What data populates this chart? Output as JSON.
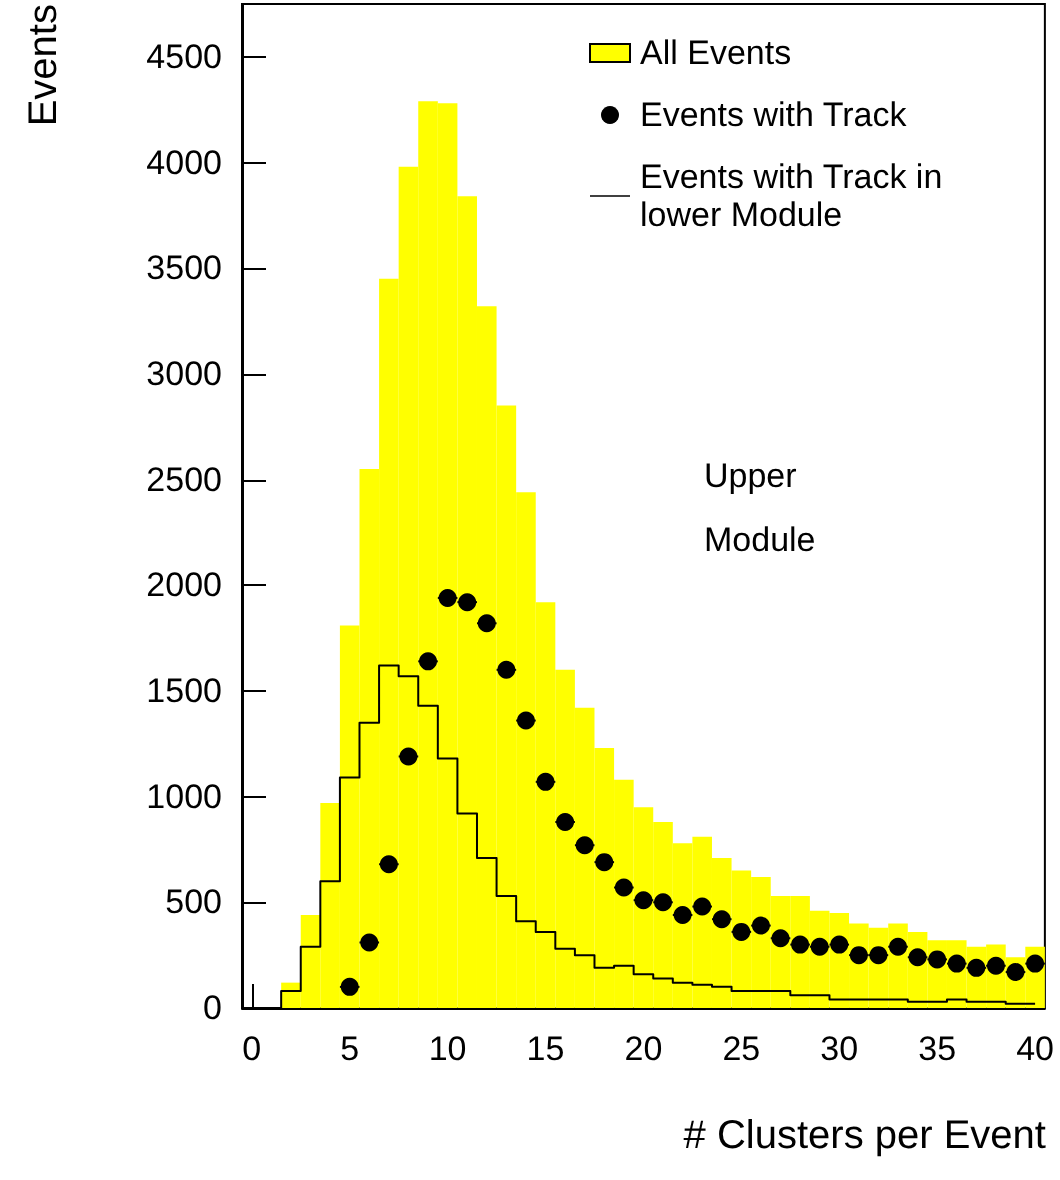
{
  "chart_data": {
    "type": "histogram",
    "xlabel": "# Clusters per Event",
    "ylabel": "Events",
    "annotations": [
      "Upper Module"
    ],
    "bins": [
      -0.5,
      0.5,
      1.5,
      2.5,
      3.5,
      4.5,
      5.5,
      6.5,
      7.5,
      8.5,
      9.5,
      10.5,
      11.5,
      12.5,
      13.5,
      14.5,
      15.5,
      16.5,
      17.5,
      18.5,
      19.5,
      20.5,
      21.5,
      22.5,
      23.5,
      24.5,
      25.5,
      26.5,
      27.5,
      28.5,
      29.5,
      30.5,
      31.5,
      32.5,
      33.5,
      34.5,
      35.5,
      36.5,
      37.5,
      38.5,
      39.5,
      40.5
    ],
    "xlim": [
      -0.5,
      40.5
    ],
    "xticks": [
      0,
      5,
      10,
      15,
      20,
      25,
      30,
      35,
      40
    ],
    "ylim": [
      0,
      4750
    ],
    "yticks": [
      0,
      500,
      1000,
      1500,
      2000,
      2500,
      3000,
      3500,
      4000,
      4500
    ],
    "legend": "top right",
    "series": [
      {
        "name": "All Events",
        "color": "#ffff00",
        "values": [
          0,
          0,
          120,
          440,
          970,
          1810,
          2550,
          3450,
          3980,
          4290,
          4280,
          3840,
          3320,
          2850,
          2440,
          1920,
          1600,
          1420,
          1230,
          1080,
          950,
          880,
          780,
          810,
          710,
          650,
          620,
          530,
          530,
          460,
          450,
          400,
          380,
          400,
          360,
          320,
          320,
          290,
          300,
          240,
          290
        ]
      },
      {
        "name": "Events with Track",
        "type": "scatter",
        "color": "#000000",
        "marker": "circle",
        "x": [
          5,
          6,
          7,
          8,
          9,
          10,
          11,
          12,
          13,
          14,
          15,
          16,
          17,
          18,
          19,
          20,
          21,
          22,
          23,
          24,
          25,
          26,
          27,
          28,
          29,
          30,
          31,
          32,
          33,
          34,
          35,
          36,
          37,
          38,
          39,
          40
        ],
        "values": [
          100,
          310,
          680,
          1190,
          1640,
          1940,
          1920,
          1820,
          1600,
          1360,
          1070,
          880,
          770,
          690,
          570,
          510,
          500,
          440,
          480,
          420,
          360,
          390,
          330,
          300,
          290,
          300,
          250,
          250,
          290,
          240,
          230,
          210,
          190,
          200,
          170,
          210
        ],
        "xerrors": [
          0.5,
          0.5,
          0.5,
          0.5,
          0.5,
          0.5,
          0.5,
          0.5,
          0.5,
          0.5,
          0.5,
          0.5,
          0.5,
          0.5,
          0.5,
          0.5,
          0.5,
          0.5,
          0.5,
          0.5,
          0.5,
          0.5,
          0.5,
          0.5,
          0.5,
          0.5,
          0.5,
          0.5,
          0.5,
          0.5,
          0.5,
          0.5,
          0.5,
          0.5,
          0.5,
          0.5
        ]
      },
      {
        "name": "Events with Track in lower Module",
        "type": "step",
        "color": "#000000",
        "line_style": "solid",
        "x": [
          0,
          1,
          2,
          3,
          4,
          5,
          6,
          7,
          8,
          9,
          10,
          11,
          12,
          13,
          14,
          15,
          16,
          17,
          18,
          19,
          20,
          21,
          22,
          23,
          24,
          25,
          26,
          27,
          28,
          29,
          30,
          31,
          32,
          33,
          34,
          35,
          36,
          37,
          38,
          39,
          40
        ],
        "values": [
          0,
          0,
          80,
          290,
          600,
          1090,
          1350,
          1620,
          1570,
          1430,
          1180,
          920,
          710,
          530,
          410,
          360,
          280,
          250,
          190,
          200,
          160,
          140,
          120,
          110,
          100,
          80,
          80,
          80,
          60,
          60,
          40,
          40,
          40,
          40,
          30,
          30,
          40,
          30,
          30,
          20,
          20
        ]
      }
    ]
  }
}
